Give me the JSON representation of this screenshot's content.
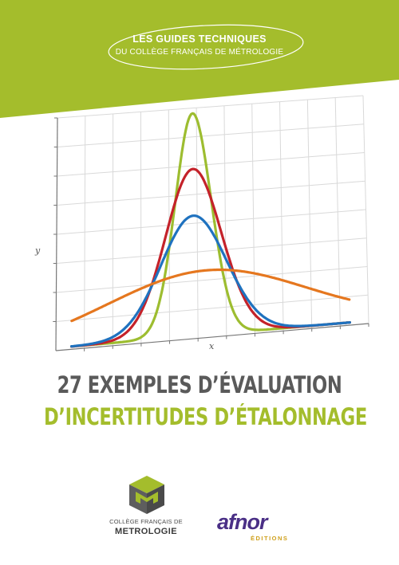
{
  "series": {
    "line1": "LES GUIDES TECHNIQUES",
    "line2": "DU COLLÈGE FRANÇAIS DE MÉTROLOGIE"
  },
  "title": {
    "line1": "27 EXEMPLES D’ÉVALUATION",
    "line2": "D’INCERTITUDES D’ÉTALONNAGE"
  },
  "chart_data": {
    "type": "line",
    "title": "",
    "xlabel": "x",
    "ylabel": "y",
    "grid": true,
    "series": [
      {
        "color": "#9dbd30",
        "mu": 0,
        "sigma": 0.55,
        "peak": 1.0
      },
      {
        "color": "#c4222a",
        "mu": 0,
        "sigma": 0.85,
        "peak": 0.75
      },
      {
        "color": "#1f72bf",
        "mu": 0,
        "sigma": 1.0,
        "peak": 0.54
      },
      {
        "color": "#e5771f",
        "mu": 0.4,
        "sigma": 3.0,
        "peak": 0.29
      }
    ]
  },
  "publisher_logos": {
    "cfm": {
      "name_line1": "COLLÈGE FRANÇAIS DE",
      "name_line2": "METROLOGIE"
    },
    "afnor": {
      "wordmark": "afnor",
      "imprint": "ÉDITIONS"
    }
  },
  "colors": {
    "accent_green": "#a4bd2c",
    "title_gray": "#5a5a5a",
    "afnor_purple": "#4a2f86",
    "afnor_gold": "#cfa01c"
  }
}
